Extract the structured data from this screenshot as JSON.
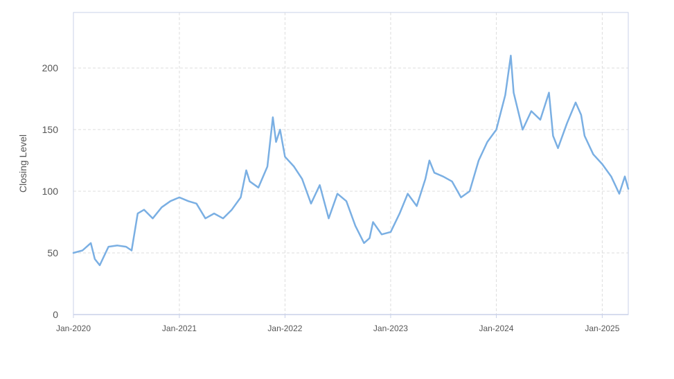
{
  "chart_data": {
    "type": "line",
    "title": "",
    "xlabel": "",
    "ylabel": "Closing Level",
    "ylim": [
      0,
      245
    ],
    "yticks": [
      0,
      50,
      100,
      150,
      200
    ],
    "xlim": [
      "2020-01-01",
      "2025-04-01"
    ],
    "xticks": [
      "2020-01-01",
      "2021-01-01",
      "2022-01-01",
      "2023-01-01",
      "2024-01-01",
      "2025-01-01"
    ],
    "xtick_labels": [
      "Jan-2020",
      "Jan-2021",
      "Jan-2022",
      "Jan-2023",
      "Jan-2024",
      "Jan-2025"
    ],
    "grid": true,
    "legend": false,
    "colors": {
      "line": "#7aafe3",
      "grid": "#dddddd",
      "axis": "#c8d0e8",
      "text": "#555555"
    },
    "series": [
      {
        "x": [
          "2020-01-01",
          "2020-02-01",
          "2020-03-01",
          "2020-03-15",
          "2020-04-01",
          "2020-05-01",
          "2020-06-01",
          "2020-07-01",
          "2020-07-20",
          "2020-08-10",
          "2020-09-01",
          "2020-10-01",
          "2020-11-01",
          "2020-12-01",
          "2021-01-01",
          "2021-02-01",
          "2021-03-01",
          "2021-04-01",
          "2021-05-01",
          "2021-06-01",
          "2021-07-01",
          "2021-08-01",
          "2021-08-20",
          "2021-09-01",
          "2021-10-01",
          "2021-11-01",
          "2021-11-20",
          "2021-12-01",
          "2021-12-15",
          "2022-01-01",
          "2022-02-01",
          "2022-03-01",
          "2022-04-01",
          "2022-05-01",
          "2022-06-01",
          "2022-07-01",
          "2022-08-01",
          "2022-09-01",
          "2022-10-01",
          "2022-10-20",
          "2022-11-01",
          "2022-12-01",
          "2023-01-01",
          "2023-02-01",
          "2023-03-01",
          "2023-04-01",
          "2023-05-01",
          "2023-05-15",
          "2023-06-01",
          "2023-07-01",
          "2023-08-01",
          "2023-09-01",
          "2023-10-01",
          "2023-11-01",
          "2023-12-01",
          "2024-01-01",
          "2024-02-01",
          "2024-02-20",
          "2024-03-01",
          "2024-04-01",
          "2024-05-01",
          "2024-06-01",
          "2024-07-01",
          "2024-07-15",
          "2024-08-01",
          "2024-09-01",
          "2024-10-01",
          "2024-10-20",
          "2024-11-01",
          "2024-12-01",
          "2025-01-01",
          "2025-02-01",
          "2025-03-01",
          "2025-03-20",
          "2025-04-01"
        ],
        "y": [
          50,
          52,
          58,
          45,
          40,
          55,
          56,
          55,
          52,
          82,
          85,
          78,
          87,
          92,
          95,
          92,
          90,
          78,
          82,
          78,
          85,
          95,
          117,
          108,
          103,
          120,
          160,
          140,
          150,
          128,
          120,
          110,
          90,
          105,
          78,
          98,
          92,
          72,
          58,
          62,
          75,
          65,
          67,
          82,
          98,
          88,
          110,
          125,
          115,
          112,
          108,
          95,
          100,
          125,
          140,
          150,
          178,
          210,
          180,
          150,
          165,
          158,
          180,
          145,
          135,
          155,
          172,
          162,
          145,
          130,
          122,
          112,
          98,
          112,
          102
        ]
      }
    ]
  }
}
